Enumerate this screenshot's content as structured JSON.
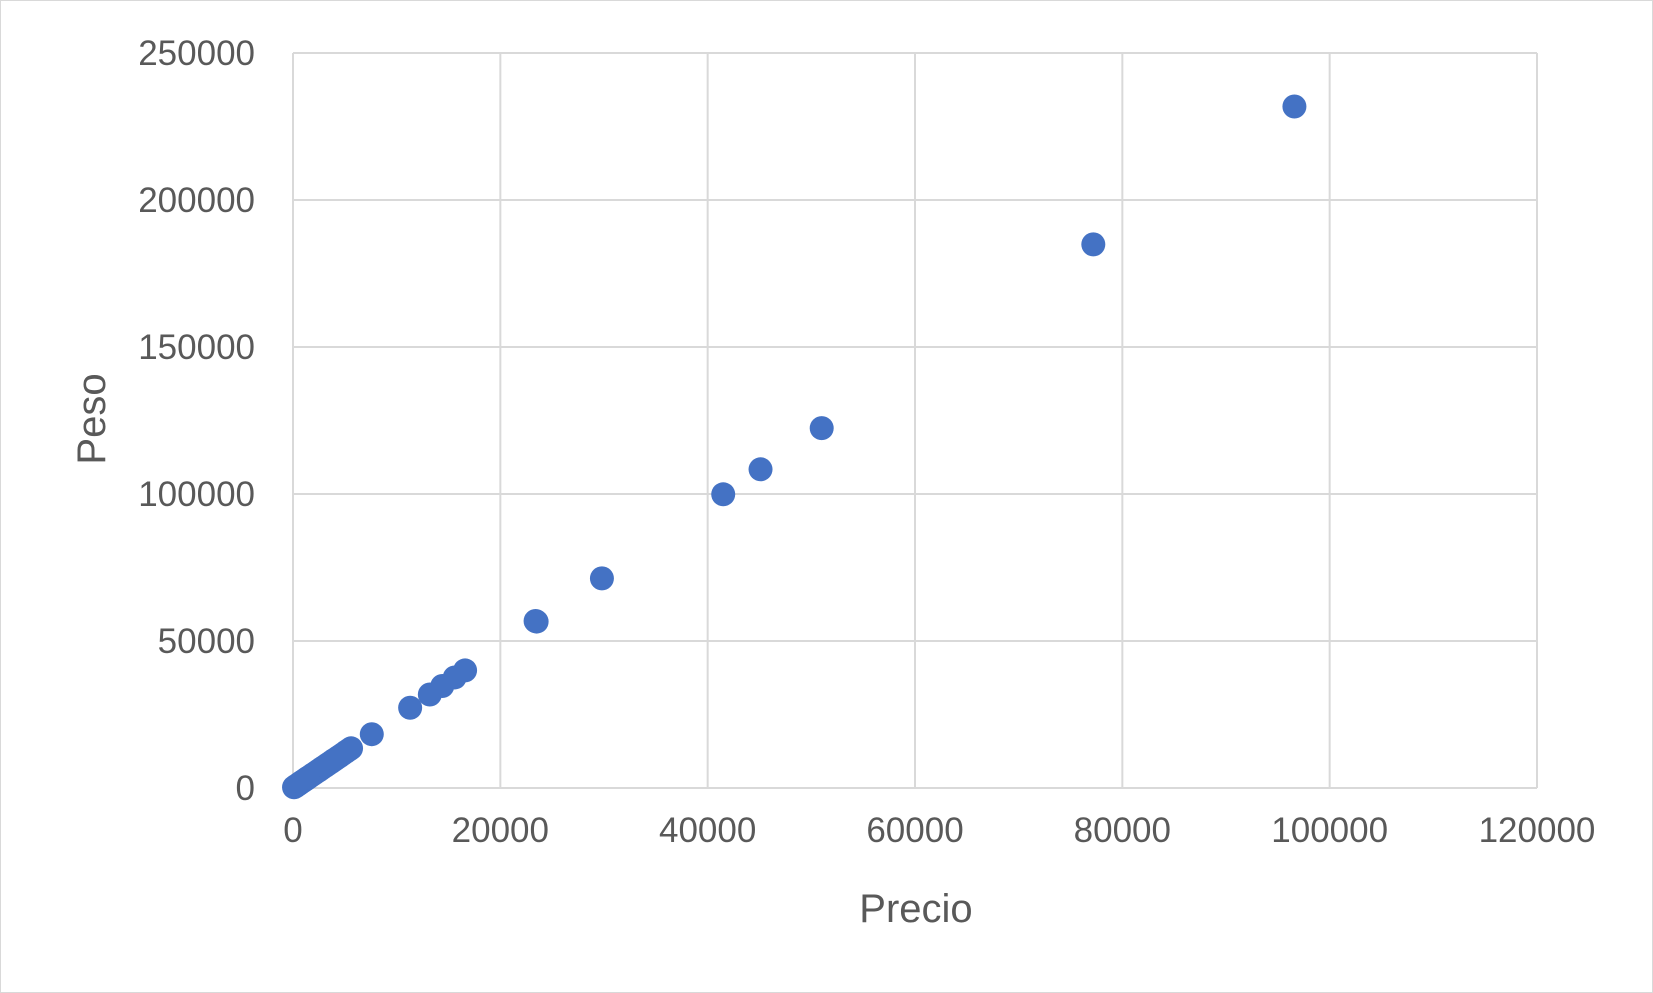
{
  "chart_data": {
    "type": "scatter",
    "title": "",
    "xlabel": "Precio",
    "ylabel": "Peso",
    "xlim": [
      0,
      120000
    ],
    "ylim": [
      0,
      250000
    ],
    "x_ticks": [
      "0",
      "20000",
      "40000",
      "60000",
      "80000",
      "100000",
      "120000"
    ],
    "y_ticks": [
      "0",
      "50000",
      "100000",
      "150000",
      "200000",
      "250000"
    ],
    "grid": true,
    "legend": "none",
    "colors": {
      "marker": "#4472c4",
      "grid": "#d9d9d9",
      "text": "#595959"
    },
    "series": [
      {
        "points": [
          [
            100,
            250
          ],
          [
            200,
            480
          ],
          [
            300,
            720
          ],
          [
            400,
            960
          ],
          [
            500,
            1200
          ],
          [
            600,
            1450
          ],
          [
            700,
            1700
          ],
          [
            800,
            1950
          ],
          [
            900,
            2200
          ],
          [
            1000,
            2400
          ],
          [
            1100,
            2650
          ],
          [
            1200,
            2900
          ],
          [
            1300,
            3150
          ],
          [
            1400,
            3400
          ],
          [
            1500,
            3600
          ],
          [
            1700,
            4100
          ],
          [
            1900,
            4600
          ],
          [
            2100,
            5050
          ],
          [
            2300,
            5550
          ],
          [
            2500,
            6000
          ],
          [
            2700,
            6500
          ],
          [
            2900,
            7000
          ],
          [
            3100,
            7450
          ],
          [
            3300,
            7950
          ],
          [
            3500,
            8400
          ],
          [
            3700,
            8900
          ],
          [
            3900,
            9400
          ],
          [
            4100,
            9850
          ],
          [
            4300,
            10350
          ],
          [
            4500,
            10800
          ],
          [
            4800,
            11550
          ],
          [
            5100,
            12300
          ],
          [
            5400,
            13000
          ],
          [
            5600,
            13500
          ],
          [
            7600,
            18300
          ],
          [
            11300,
            27300
          ],
          [
            13200,
            31800
          ],
          [
            14400,
            34700
          ],
          [
            15600,
            37600
          ],
          [
            16600,
            40000
          ],
          [
            23500,
            56600
          ],
          [
            23400,
            56800
          ],
          [
            29800,
            71300
          ],
          [
            41500,
            99900
          ],
          [
            45100,
            108400
          ],
          [
            51000,
            122400
          ],
          [
            77200,
            184900
          ],
          [
            96600,
            231800
          ]
        ]
      }
    ]
  }
}
